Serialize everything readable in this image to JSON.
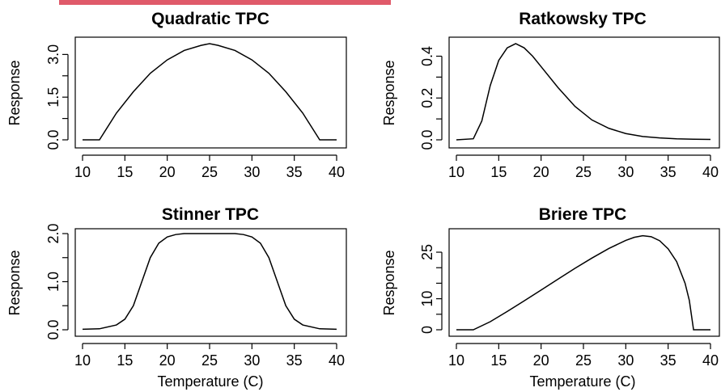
{
  "figure": {
    "accent_bar_color": "#e05a6a"
  },
  "chart_data": [
    {
      "type": "line",
      "title": "Quadratic TPC",
      "xlabel": "",
      "ylabel": "Response",
      "xlim": [
        10,
        40
      ],
      "ylim": [
        0,
        3.38
      ],
      "xticks": [
        10,
        15,
        20,
        25,
        30,
        35,
        40
      ],
      "yticks": [
        0.0,
        1.5,
        3.0
      ],
      "ytick_labels": [
        "0.0",
        "1.5",
        "3.0"
      ],
      "series": [
        {
          "x": [
            10,
            12,
            14,
            16,
            18,
            20,
            22,
            24,
            25,
            26,
            28,
            30,
            32,
            34,
            36,
            38,
            40
          ],
          "y": [
            0,
            0,
            0.94,
            1.69,
            2.34,
            2.81,
            3.14,
            3.32,
            3.38,
            3.32,
            3.14,
            2.81,
            2.34,
            1.69,
            0.94,
            0,
            0
          ]
        }
      ]
    },
    {
      "type": "line",
      "title": "Ratkowsky TPC",
      "xlabel": "",
      "ylabel": "Response",
      "xlim": [
        10,
        40
      ],
      "ylim": [
        0,
        0.46
      ],
      "xticks": [
        10,
        15,
        20,
        25,
        30,
        35,
        40
      ],
      "yticks": [
        0.0,
        0.2,
        0.4
      ],
      "ytick_labels": [
        "0.0",
        "0.2",
        "0.4"
      ],
      "series": [
        {
          "x": [
            10,
            12,
            13,
            14,
            15,
            16,
            17,
            18,
            19,
            20,
            22,
            24,
            26,
            28,
            30,
            32,
            34,
            36,
            38,
            40
          ],
          "y": [
            0,
            0.005,
            0.09,
            0.26,
            0.38,
            0.44,
            0.46,
            0.44,
            0.4,
            0.35,
            0.25,
            0.16,
            0.095,
            0.055,
            0.03,
            0.016,
            0.009,
            0.005,
            0.003,
            0.002
          ]
        }
      ]
    },
    {
      "type": "line",
      "title": "Stinner TPC",
      "xlabel": "Temperature (C)",
      "ylabel": "Response",
      "xlim": [
        10,
        40
      ],
      "ylim": [
        0,
        2.0
      ],
      "xticks": [
        10,
        15,
        20,
        25,
        30,
        35,
        40
      ],
      "yticks": [
        0.0,
        1.0,
        2.0
      ],
      "ytick_labels": [
        "0.0",
        "1.0",
        "2.0"
      ],
      "series": [
        {
          "x": [
            10,
            12,
            14,
            15,
            16,
            17,
            18,
            19,
            20,
            21,
            22,
            25,
            28,
            29,
            30,
            31,
            32,
            33,
            34,
            35,
            36,
            38,
            40
          ],
          "y": [
            0.01,
            0.02,
            0.1,
            0.22,
            0.5,
            1.0,
            1.5,
            1.8,
            1.93,
            1.98,
            2.0,
            2.0,
            2.0,
            1.98,
            1.93,
            1.8,
            1.5,
            1.0,
            0.5,
            0.22,
            0.1,
            0.02,
            0.01
          ]
        }
      ]
    },
    {
      "type": "line",
      "title": "Briere TPC",
      "xlabel": "Temperature (C)",
      "ylabel": "Response",
      "xlim": [
        10,
        40
      ],
      "ylim": [
        0,
        31
      ],
      "xticks": [
        10,
        15,
        20,
        25,
        30,
        35,
        40
      ],
      "yticks": [
        0,
        10,
        25
      ],
      "ytick_labels": [
        "0",
        "10",
        "25"
      ],
      "series": [
        {
          "x": [
            10,
            12,
            14,
            16,
            18,
            20,
            22,
            24,
            26,
            28,
            30,
            31,
            32,
            33,
            34,
            35,
            36,
            37,
            37.5,
            38,
            40
          ],
          "y": [
            0,
            0,
            2.6,
            5.9,
            9.3,
            12.8,
            16.3,
            19.8,
            23.1,
            26.2,
            28.8,
            29.8,
            30.3,
            30.0,
            28.7,
            26.1,
            22.0,
            15.0,
            9.5,
            0,
            0
          ]
        }
      ]
    }
  ]
}
